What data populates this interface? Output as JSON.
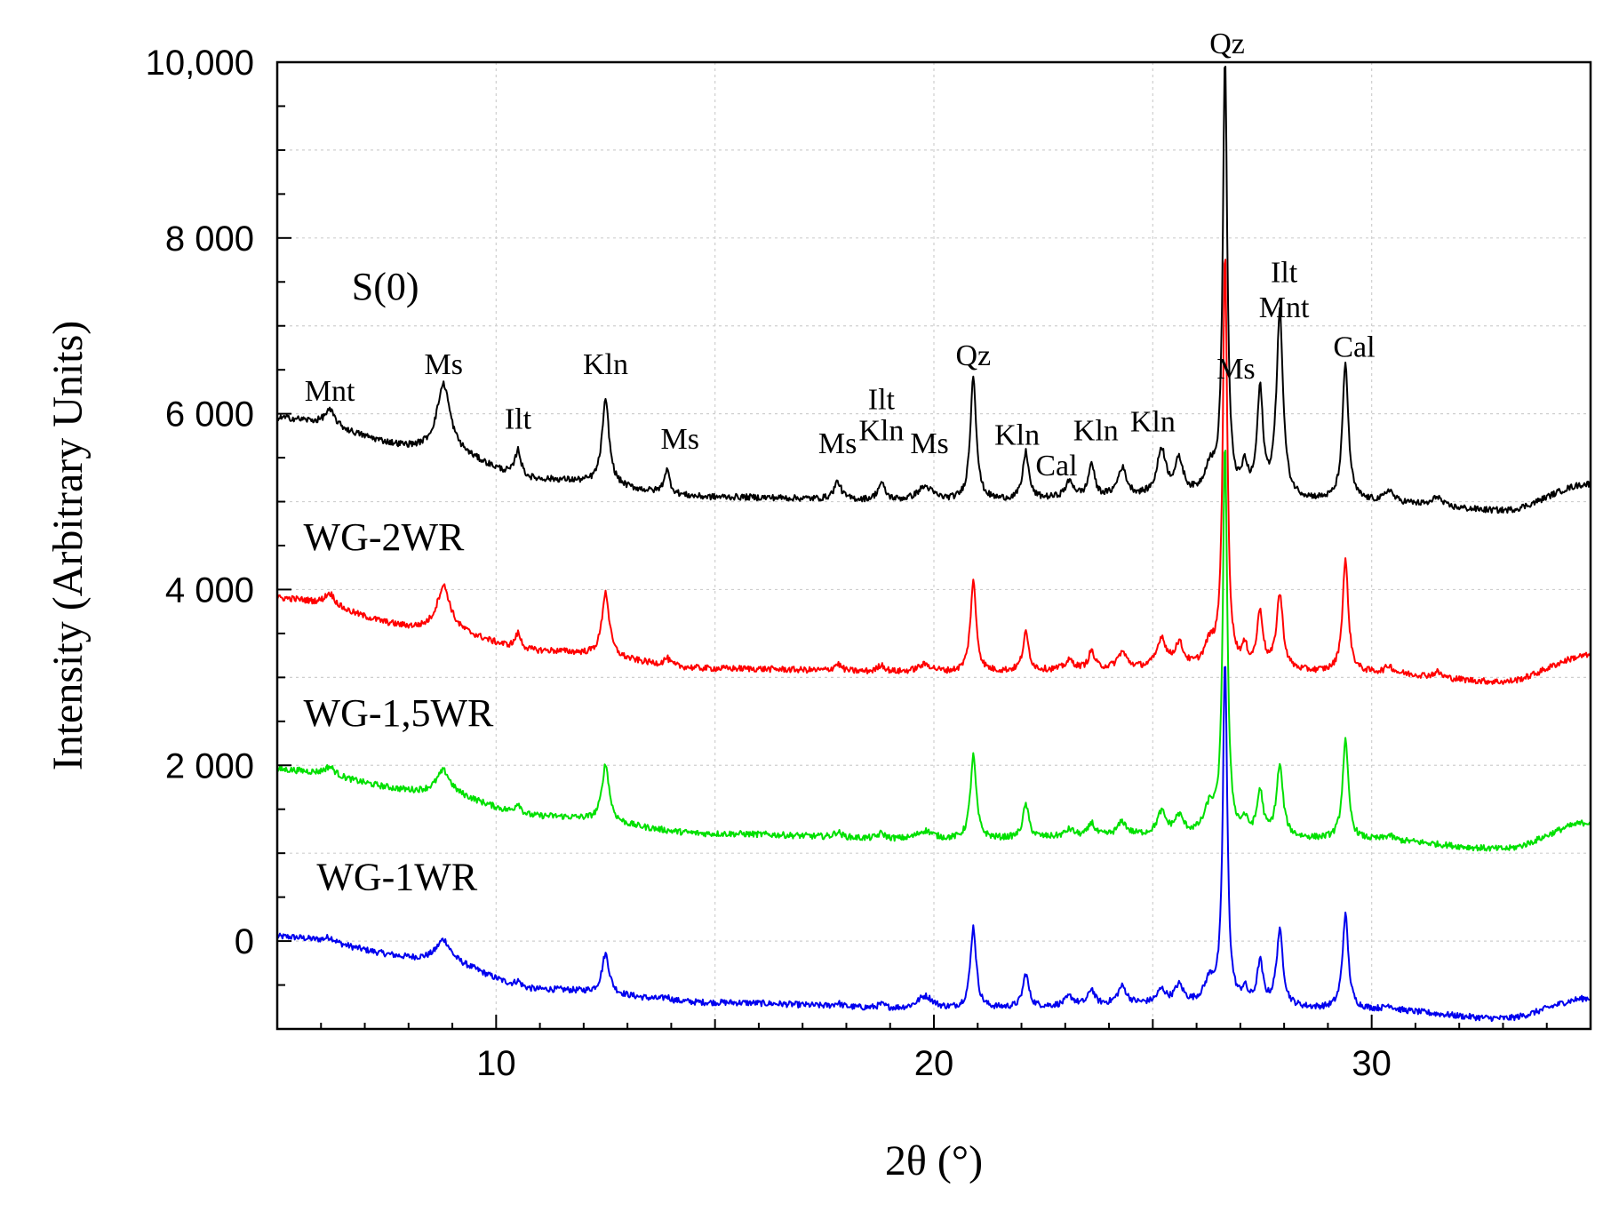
{
  "chart_data": {
    "type": "line",
    "title": "",
    "xlabel": "2θ (°)",
    "ylabel": "Intensity (Arbitrary Units)",
    "xlim": [
      5,
      35
    ],
    "ylim": [
      -1000,
      10000
    ],
    "x_ticks": [
      10,
      20,
      30
    ],
    "x_tick_labels": [
      "10",
      "20",
      "30"
    ],
    "y_ticks": [
      0,
      2000,
      4000,
      6000,
      8000,
      10000
    ],
    "y_tick_labels": [
      "0",
      "2 000",
      "4 000",
      "6 000",
      "8 000",
      "10,000"
    ],
    "grid": true,
    "series": [
      {
        "name": "S(0)",
        "color": "#000000",
        "label_at": [
          6.7,
          7300
        ],
        "baseline": [
          [
            5,
            5950
          ],
          [
            8.5,
            5600
          ],
          [
            11,
            5250
          ],
          [
            15,
            5050
          ],
          [
            20,
            5000
          ],
          [
            25,
            5050
          ],
          [
            30,
            5000
          ],
          [
            33,
            4900
          ],
          [
            35,
            5200
          ]
        ],
        "peaks": [
          [
            6.2,
            180,
            0.15
          ],
          [
            8.8,
            750,
            0.18
          ],
          [
            10.5,
            300,
            0.08
          ],
          [
            12.5,
            950,
            0.1
          ],
          [
            13.9,
            270,
            0.08
          ],
          [
            17.8,
            200,
            0.1
          ],
          [
            18.8,
            190,
            0.1
          ],
          [
            19.8,
            160,
            0.22
          ],
          [
            20.9,
            1430,
            0.08
          ],
          [
            22.1,
            540,
            0.08
          ],
          [
            23.1,
            180,
            0.12
          ],
          [
            23.6,
            380,
            0.08
          ],
          [
            24.3,
            320,
            0.12
          ],
          [
            25.2,
            520,
            0.12
          ],
          [
            25.6,
            380,
            0.12
          ],
          [
            26.3,
            300,
            0.15
          ],
          [
            26.65,
            4950,
            0.06
          ],
          [
            27.1,
            300,
            0.08
          ],
          [
            27.45,
            1180,
            0.08
          ],
          [
            27.9,
            2100,
            0.09
          ],
          [
            29.4,
            1560,
            0.08
          ],
          [
            30.4,
            130,
            0.1
          ],
          [
            31.5,
            110,
            0.1
          ]
        ]
      },
      {
        "name": "WG-2WR",
        "color": "#ff0000",
        "label_at": [
          5.6,
          4450
        ],
        "baseline": [
          [
            5,
            3900
          ],
          [
            8.5,
            3550
          ],
          [
            11,
            3300
          ],
          [
            15,
            3100
          ],
          [
            20,
            3050
          ],
          [
            25,
            3100
          ],
          [
            30,
            3050
          ],
          [
            33,
            2950
          ],
          [
            35,
            3250
          ]
        ],
        "peaks": [
          [
            6.2,
            150,
            0.15
          ],
          [
            8.8,
            500,
            0.18
          ],
          [
            10.5,
            170,
            0.08
          ],
          [
            12.5,
            730,
            0.1
          ],
          [
            13.9,
            80,
            0.08
          ],
          [
            17.8,
            80,
            0.1
          ],
          [
            18.8,
            80,
            0.1
          ],
          [
            19.8,
            90,
            0.22
          ],
          [
            20.9,
            1030,
            0.08
          ],
          [
            22.1,
            430,
            0.08
          ],
          [
            23.1,
            100,
            0.12
          ],
          [
            23.6,
            200,
            0.08
          ],
          [
            24.3,
            180,
            0.12
          ],
          [
            25.2,
            330,
            0.12
          ],
          [
            25.6,
            260,
            0.12
          ],
          [
            26.3,
            250,
            0.15
          ],
          [
            26.65,
            4700,
            0.06
          ],
          [
            27.1,
            200,
            0.08
          ],
          [
            27.45,
            640,
            0.08
          ],
          [
            27.9,
            850,
            0.09
          ],
          [
            29.4,
            1270,
            0.08
          ],
          [
            30.4,
            80,
            0.1
          ],
          [
            31.5,
            60,
            0.1
          ]
        ]
      },
      {
        "name": "WG-1,5WR",
        "color": "#00e000",
        "label_at": [
          5.6,
          2450
        ],
        "baseline": [
          [
            5,
            1950
          ],
          [
            8.5,
            1700
          ],
          [
            11,
            1420
          ],
          [
            15,
            1220
          ],
          [
            20,
            1150
          ],
          [
            25,
            1200
          ],
          [
            30,
            1150
          ],
          [
            33,
            1050
          ],
          [
            35,
            1350
          ]
        ],
        "peaks": [
          [
            6.2,
            100,
            0.15
          ],
          [
            8.8,
            250,
            0.18
          ],
          [
            10.5,
            120,
            0.08
          ],
          [
            12.5,
            650,
            0.1
          ],
          [
            17.8,
            60,
            0.1
          ],
          [
            18.8,
            60,
            0.1
          ],
          [
            19.8,
            100,
            0.22
          ],
          [
            20.9,
            950,
            0.08
          ],
          [
            22.1,
            380,
            0.08
          ],
          [
            23.1,
            80,
            0.12
          ],
          [
            23.6,
            150,
            0.08
          ],
          [
            24.3,
            150,
            0.12
          ],
          [
            25.2,
            250,
            0.12
          ],
          [
            25.6,
            200,
            0.12
          ],
          [
            26.3,
            300,
            0.15
          ],
          [
            26.65,
            4450,
            0.06
          ],
          [
            27.1,
            150,
            0.08
          ],
          [
            27.45,
            500,
            0.08
          ],
          [
            27.9,
            800,
            0.09
          ],
          [
            29.4,
            1120,
            0.08
          ],
          [
            30.4,
            50,
            0.1
          ]
        ]
      },
      {
        "name": "WG-1WR",
        "color": "#0000ee",
        "label_at": [
          5.9,
          580
        ],
        "baseline": [
          [
            5,
            50
          ],
          [
            8.5,
            -200
          ],
          [
            11,
            -550
          ],
          [
            15,
            -700
          ],
          [
            20,
            -780
          ],
          [
            25,
            -720
          ],
          [
            30,
            -780
          ],
          [
            33,
            -880
          ],
          [
            35,
            -650
          ]
        ],
        "peaks": [
          [
            6.2,
            60,
            0.15
          ],
          [
            8.8,
            230,
            0.18
          ],
          [
            10.5,
            60,
            0.08
          ],
          [
            12.5,
            450,
            0.1
          ],
          [
            13.9,
            40,
            0.08
          ],
          [
            17.8,
            40,
            0.1
          ],
          [
            18.8,
            40,
            0.1
          ],
          [
            19.8,
            150,
            0.22
          ],
          [
            20.9,
            930,
            0.08
          ],
          [
            22.1,
            380,
            0.08
          ],
          [
            23.1,
            100,
            0.12
          ],
          [
            23.6,
            180,
            0.08
          ],
          [
            24.3,
            200,
            0.12
          ],
          [
            25.2,
            150,
            0.12
          ],
          [
            25.6,
            200,
            0.12
          ],
          [
            26.3,
            250,
            0.15
          ],
          [
            26.65,
            3900,
            0.06
          ],
          [
            27.1,
            150,
            0.08
          ],
          [
            27.45,
            480,
            0.08
          ],
          [
            27.9,
            850,
            0.09
          ],
          [
            29.4,
            1070,
            0.08
          ],
          [
            30.4,
            50,
            0.1
          ]
        ]
      }
    ],
    "annotations": [
      {
        "text": "Mnt",
        "x": 6.2,
        "y": 6150
      },
      {
        "text": "Ms",
        "x": 8.8,
        "y": 6450
      },
      {
        "text": "Ilt",
        "x": 10.5,
        "y": 5830
      },
      {
        "text": "Kln",
        "x": 12.5,
        "y": 6450
      },
      {
        "text": "Ms",
        "x": 14.2,
        "y": 5600
      },
      {
        "text": "Ms",
        "x": 17.8,
        "y": 5550
      },
      {
        "text": "Ilt",
        "x": 18.8,
        "y": 6050
      },
      {
        "text": "Kln",
        "x": 18.8,
        "y": 5700
      },
      {
        "text": "Ms",
        "x": 19.9,
        "y": 5550
      },
      {
        "text": "Qz",
        "x": 20.9,
        "y": 6550
      },
      {
        "text": "Kln",
        "x": 21.9,
        "y": 5650
      },
      {
        "text": "Cal",
        "x": 22.8,
        "y": 5300
      },
      {
        "text": "Kln",
        "x": 23.7,
        "y": 5700
      },
      {
        "text": "Kln",
        "x": 25.0,
        "y": 5800
      },
      {
        "text": "Qz",
        "x": 26.7,
        "y": 10100
      },
      {
        "text": "Ms",
        "x": 26.9,
        "y": 6400
      },
      {
        "text": "Ilt",
        "x": 28.0,
        "y": 7500
      },
      {
        "text": "Mnt",
        "x": 28.0,
        "y": 7100
      },
      {
        "text": "Cal",
        "x": 29.6,
        "y": 6650
      }
    ]
  }
}
